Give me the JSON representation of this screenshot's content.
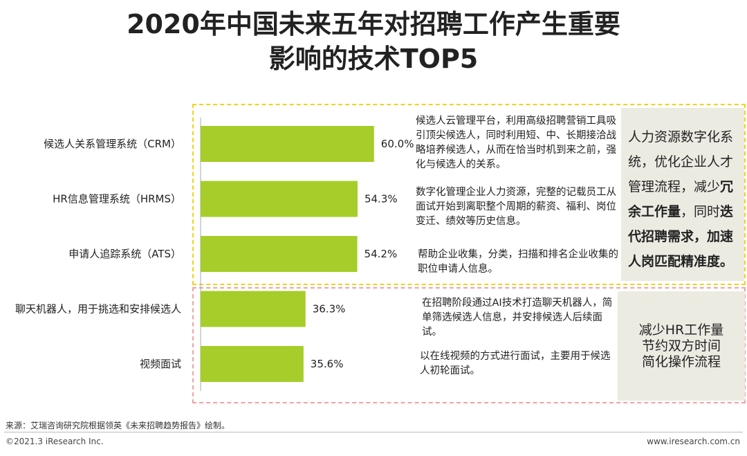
{
  "title": {
    "line1": "2020年中国未来五年对招聘工作产生重要",
    "line2": "影响的技术TOP5"
  },
  "colors": {
    "bar": "#a6cd29",
    "axis": "#aaaaaa",
    "group1_border": "#f2d21b",
    "group2_border": "#f0a2a2",
    "summary_bg": "#ecebe2"
  },
  "chart_data": {
    "type": "bar",
    "orientation": "horizontal",
    "title": "2020年中国未来五年对招聘工作产生重要影响的技术TOP5",
    "categories": [
      "候选人关系管理系统（CRM）",
      "HR信息管理系统（HRMS）",
      "申请人追踪系统（ATS）",
      "聊天机器人，用于挑选和安排候选人",
      "视频面试"
    ],
    "values": [
      60.0,
      54.3,
      54.2,
      36.3,
      35.6
    ],
    "value_labels": [
      "60.0%",
      "54.3%",
      "54.2%",
      "36.3%",
      "35.6%"
    ],
    "xlim": [
      0,
      100
    ],
    "xlabel": "",
    "ylabel": "",
    "grid": false
  },
  "descriptions": [
    "候选人云管理平台，利用高级招聘营销工具吸引顶尖候选人，同时利用短、中、长期接洽战略培养候选人，从而在恰当时机到来之前，强化与候选人的关系。",
    "数字化管理企业人力资源，完整的记载员工从面试开始到离职整个周期的薪资、福利、岗位变迁、绩效等历史信息。",
    "帮助企业收集，分类，扫描和排名企业收集的职位申请人信息。",
    "在招聘阶段通过AI技术打造聊天机器人，简单筛选候选人信息，并安排候选人后续面试。",
    "以在线视频的方式进行面试，主要用于候选人初轮面试。"
  ],
  "summary1": {
    "normal": "人力资源数字化系统，优化企业人才管理流程，减少",
    "bold1": "冗余工作量",
    "mid": "，同时",
    "bold2": "迭代招聘需求，加速人岗匹配精准度。"
  },
  "summary2": {
    "lines": [
      "减少HR工作量",
      "节约双方时间",
      "简化操作流程"
    ]
  },
  "footer": {
    "source": "来源：艾瑞咨询研究院根据领英《未来招聘趋势报告》绘制。",
    "copyright": "©2021.3 iResearch Inc.",
    "url": "www.iresearch.com.cn"
  }
}
